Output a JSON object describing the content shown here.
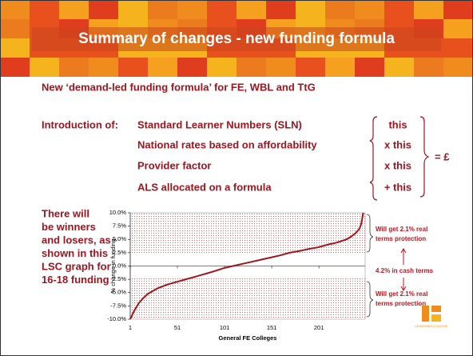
{
  "slide": {
    "title": "Summary of changes - new funding formula",
    "subtitle": "New ‘demand-led funding formula’ for FE, WBL and TtG",
    "intro": "Introduction of:",
    "items": [
      "Standard Learner Numbers (SLN)",
      "National rates based on affordability",
      "Provider factor",
      "ALS allocated on a formula"
    ],
    "multipliers": [
      "this",
      "x this",
      "x this",
      "+ this"
    ],
    "result": "= £",
    "side_text": [
      "There will",
      "be winners",
      "and losers, as",
      "shown in this",
      "LSC graph for",
      "16-18 funding"
    ],
    "logo": "LEWISHAM COLLEGE"
  },
  "chart_data": {
    "type": "line",
    "xlabel": "General FE Colleges",
    "ylabel": "% change in funding",
    "x": [
      1,
      5,
      10,
      15,
      20,
      30,
      40,
      50,
      60,
      70,
      80,
      90,
      100,
      110,
      120,
      130,
      140,
      150,
      160,
      170,
      180,
      190,
      200,
      210,
      220,
      230,
      235,
      240,
      244,
      246,
      248
    ],
    "values": [
      -10,
      -8.5,
      -7,
      -6,
      -5.2,
      -4.2,
      -3.5,
      -3,
      -2.5,
      -2,
      -1.5,
      -1,
      -0.4,
      0,
      0.4,
      0.8,
      1.2,
      1.6,
      2,
      2.5,
      2.8,
      3.2,
      3.5,
      4,
      4.4,
      5,
      5.5,
      6.2,
      7,
      8,
      10
    ],
    "color": "#a0141e",
    "xlim": [
      1,
      250
    ],
    "ylim": [
      -10,
      10
    ],
    "xticks": [
      1,
      51,
      101,
      151,
      201
    ],
    "yticks": [
      {
        "value": 10,
        "label": "10.0%"
      },
      {
        "value": 7.5,
        "label": "7.5%"
      },
      {
        "value": 5,
        "label": "5.0%"
      },
      {
        "value": 2.5,
        "label": "2.5%"
      },
      {
        "value": 0,
        "label": "0.0%"
      },
      {
        "value": -2.5,
        "label": "-2.5%"
      },
      {
        "value": -5,
        "label": "-5.0%"
      },
      {
        "value": -7.5,
        "label": "-7.5%"
      },
      {
        "value": -10,
        "label": "-10.0%"
      }
    ],
    "bands": [
      {
        "from": 2.3,
        "to": 10
      },
      {
        "from": -10,
        "to": -2.3
      }
    ],
    "annotations": [
      "Will get 2.1% real",
      "terms protection",
      "4.2% in cash terms",
      "Will get 2.1% real",
      "terms protection"
    ]
  }
}
